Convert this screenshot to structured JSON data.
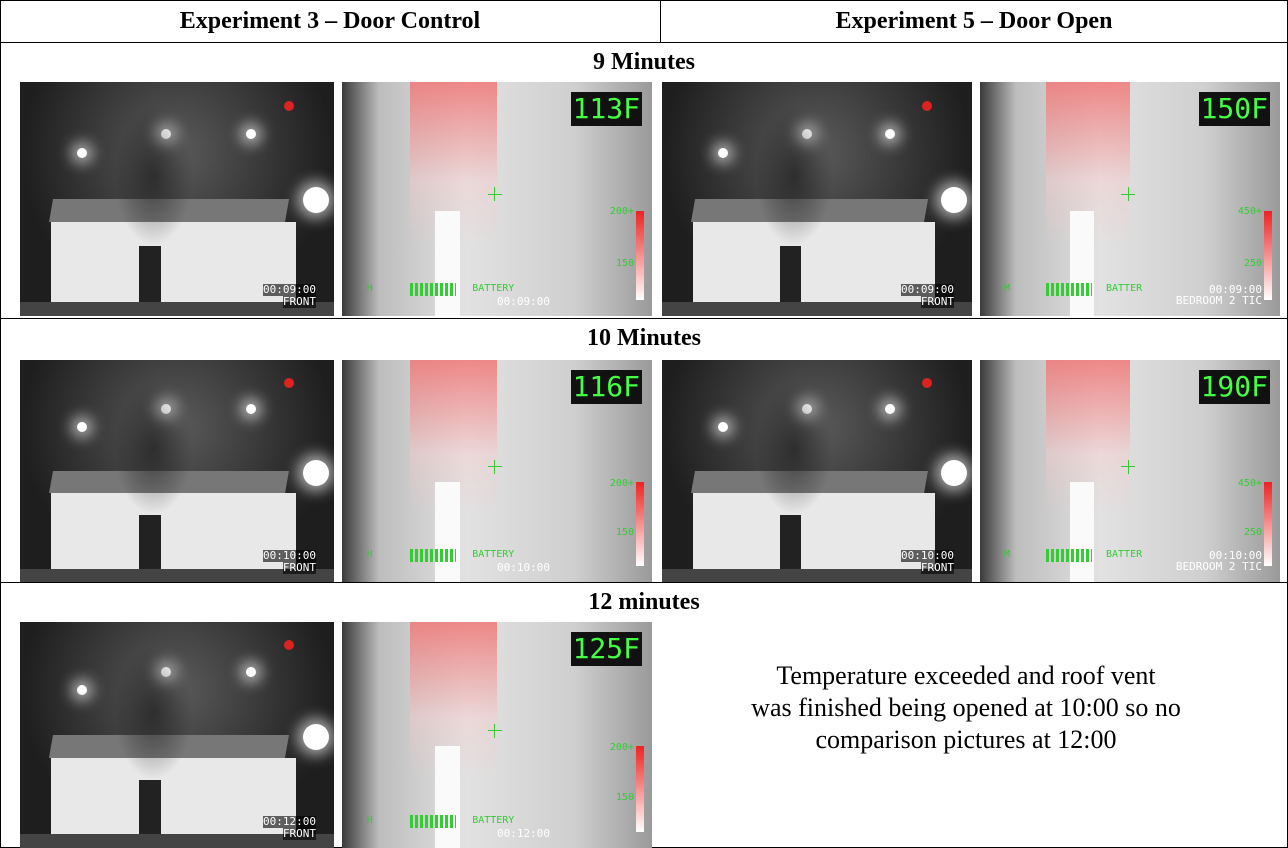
{
  "header": {
    "left": "Experiment 3 – Door Control",
    "right": "Experiment 5 – Door Open"
  },
  "sections": [
    {
      "label": "9 Minutes",
      "exp3_camera": {
        "timestamp": "00:09:00",
        "label": "FRONT"
      },
      "exp3_thermal": {
        "temp": "113F",
        "mode": "H",
        "battery": "BATTERY",
        "timestamp": "00:09:00",
        "scale_top": "200+",
        "scale_mid": "150"
      },
      "exp5_camera": {
        "timestamp": "00:09:00",
        "label": "FRONT"
      },
      "exp5_thermal": {
        "temp": "150F",
        "mode": "M",
        "battery": "BATTER",
        "timestamp": "00:09:00",
        "label": "BEDROOM 2 TIC",
        "scale_top": "450+",
        "scale_mid": "250"
      }
    },
    {
      "label": "10 Minutes",
      "exp3_camera": {
        "timestamp": "00:10:00",
        "label": "FRONT"
      },
      "exp3_thermal": {
        "temp": "116F",
        "mode": "H",
        "battery": "BATTERY",
        "timestamp": "00:10:00",
        "scale_top": "200+",
        "scale_mid": "150"
      },
      "exp5_camera": {
        "timestamp": "00:10:00",
        "label": "FRONT"
      },
      "exp5_thermal": {
        "temp": "190F",
        "mode": "M",
        "battery": "BATTER",
        "timestamp": "00:10:00",
        "label": "BEDROOM 2 TIC",
        "scale_top": "450+",
        "scale_mid": "250"
      }
    },
    {
      "label": "12 minutes",
      "exp3_camera": {
        "timestamp": "00:12:00",
        "label": "FRONT"
      },
      "exp3_thermal": {
        "temp": "125F",
        "mode": "H",
        "battery": "BATTERY",
        "timestamp": "00:12:00",
        "scale_top": "200+",
        "scale_mid": "150"
      },
      "note": [
        "Temperature exceeded and roof vent",
        "was finished being opened at 10:00 so no",
        "comparison pictures at 12:00"
      ]
    }
  ]
}
